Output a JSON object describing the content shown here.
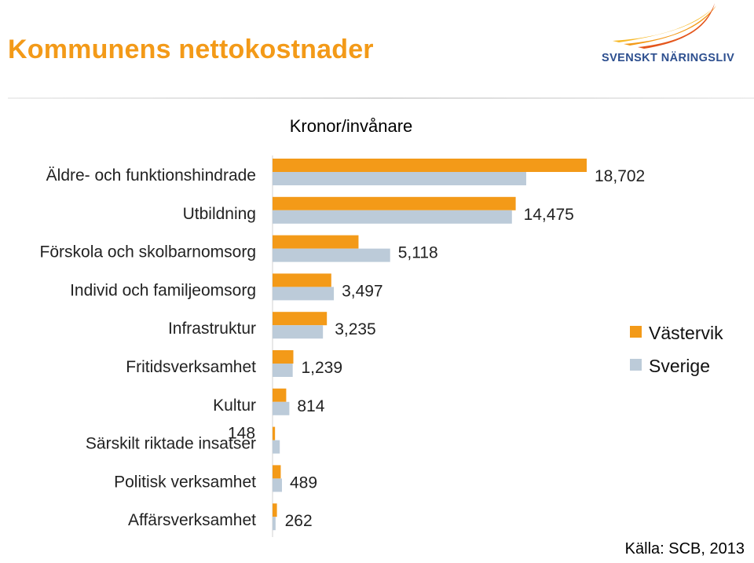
{
  "title": "Kommunens nettokostnader",
  "logo": {
    "name": "SVENSKT NÄRINGSLIV",
    "icon": "flame-swoosh-logo-icon",
    "colors": [
      "#f7b928",
      "#f39a18",
      "#e4561c"
    ]
  },
  "source": "Källa: SCB, 2013",
  "colors": {
    "title": "#f39a18",
    "vastervik": "#f39a18",
    "sverige": "#bccbd9"
  },
  "chart_data": {
    "type": "bar",
    "orientation": "horizontal",
    "subtitle": "Kronor/invånare",
    "categories": [
      "Äldre- och funktionshindrade",
      "Utbildning",
      "Förskola och skolbarnomsorg",
      "Individ och familjeomsorg",
      "Infrastruktur",
      "Fritidsverksamhet",
      "Kultur",
      "Särskilt riktade insatser",
      "Politisk verksamhet",
      "Affärsverksamhet"
    ],
    "series": [
      {
        "name": "Västervik",
        "color": "#f39a18",
        "values": [
          18702,
          14475,
          5118,
          3497,
          3235,
          1239,
          814,
          148,
          489,
          262
        ]
      },
      {
        "name": "Sverige",
        "color": "#bccbd9",
        "values": [
          15100,
          14250,
          7000,
          3650,
          3000,
          1200,
          1000,
          430,
          560,
          180
        ]
      }
    ],
    "data_labels": [
      "18,702",
      "14,475",
      "5,118",
      "3,497",
      "3,235",
      "1,239",
      "814",
      "148",
      "489",
      "262"
    ],
    "xlim": [
      0,
      18702
    ],
    "grid": false,
    "legend_position": "right"
  }
}
